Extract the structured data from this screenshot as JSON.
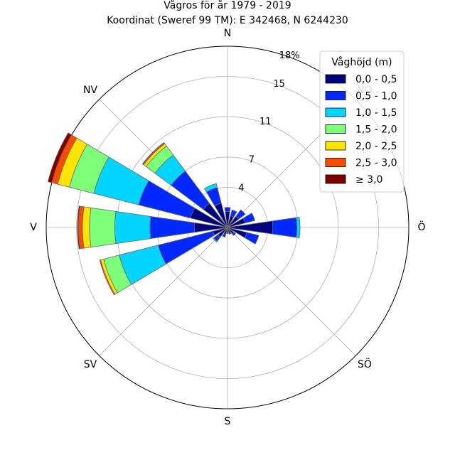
{
  "chart_data": {
    "type": "windrose",
    "title": "Vågros för år 1979 - 2019",
    "subtitle": "Koordinat (Sweref 99 TM): E 342468, N 6244230",
    "direction_labels": [
      "N",
      "NV",
      "V",
      "SV",
      "S",
      "SÖ",
      "Ö",
      "NO"
    ],
    "radial_tick_labels": [
      "4",
      "7",
      "11",
      "15",
      "18%"
    ],
    "radial_ticks": [
      4,
      7,
      11,
      15,
      18
    ],
    "rmax": 18,
    "legend": {
      "title": "Våghöjd (m)",
      "position": "top-right",
      "entries": [
        "0,0 - 0,5",
        "0,5 - 1,0",
        "1,0 - 1,5",
        "1,5 - 2,0",
        "2,0 - 2,5",
        "2,5 - 3,0",
        "≥ 3,0"
      ]
    },
    "colors": [
      "#00007f",
      "#0028ff",
      "#00d4ff",
      "#7dff7a",
      "#ffe500",
      "#ff4a00",
      "#7f0000"
    ],
    "directions": [
      0,
      22.5,
      45,
      67.5,
      90,
      112.5,
      135,
      157.5,
      180,
      202.5,
      225,
      247.5,
      270,
      292.5,
      315,
      337.5
    ],
    "series": [
      {
        "name": "0,0 - 0,5",
        "values": [
          1.6,
          1.2,
          1.4,
          1.8,
          4.5,
          2.0,
          0.8,
          0.6,
          0.5,
          0.7,
          1.2,
          1.5,
          3.3,
          3.8,
          3.0,
          2.5
        ]
      },
      {
        "name": "0,5 - 1,0",
        "values": [
          0.4,
          0.6,
          0.8,
          1.0,
          2.4,
          1.2,
          0.2,
          0.1,
          0.1,
          0.3,
          0.5,
          5.6,
          4.4,
          5.3,
          4.0,
          1.6
        ]
      },
      {
        "name": "1,0 - 1,5",
        "values": [
          0.0,
          0.0,
          0.0,
          0.0,
          0.3,
          0.0,
          0.0,
          0.0,
          0.0,
          0.0,
          0.1,
          4.0,
          3.5,
          4.6,
          2.0,
          0.4
        ]
      },
      {
        "name": "1,5 - 2,0",
        "values": [
          0.0,
          0.0,
          0.0,
          0.0,
          0.0,
          0.0,
          0.0,
          0.0,
          0.0,
          0.0,
          0.0,
          1.6,
          2.5,
          2.5,
          1.1,
          0.0
        ]
      },
      {
        "name": "2,0 - 2,5",
        "values": [
          0.0,
          0.0,
          0.0,
          0.0,
          0.0,
          0.0,
          0.0,
          0.0,
          0.0,
          0.0,
          0.0,
          0.3,
          0.7,
          1.2,
          0.3,
          0.0
        ]
      },
      {
        "name": "2,5 - 3,0",
        "values": [
          0.0,
          0.0,
          0.0,
          0.0,
          0.0,
          0.0,
          0.0,
          0.0,
          0.0,
          0.0,
          0.0,
          0.1,
          0.4,
          0.6,
          0.1,
          0.0
        ]
      },
      {
        "name": "≥ 3,0",
        "values": [
          0.0,
          0.0,
          0.0,
          0.0,
          0.0,
          0.0,
          0.0,
          0.0,
          0.0,
          0.0,
          0.0,
          0.0,
          0.1,
          0.4,
          0.05,
          0.0
        ]
      }
    ]
  }
}
